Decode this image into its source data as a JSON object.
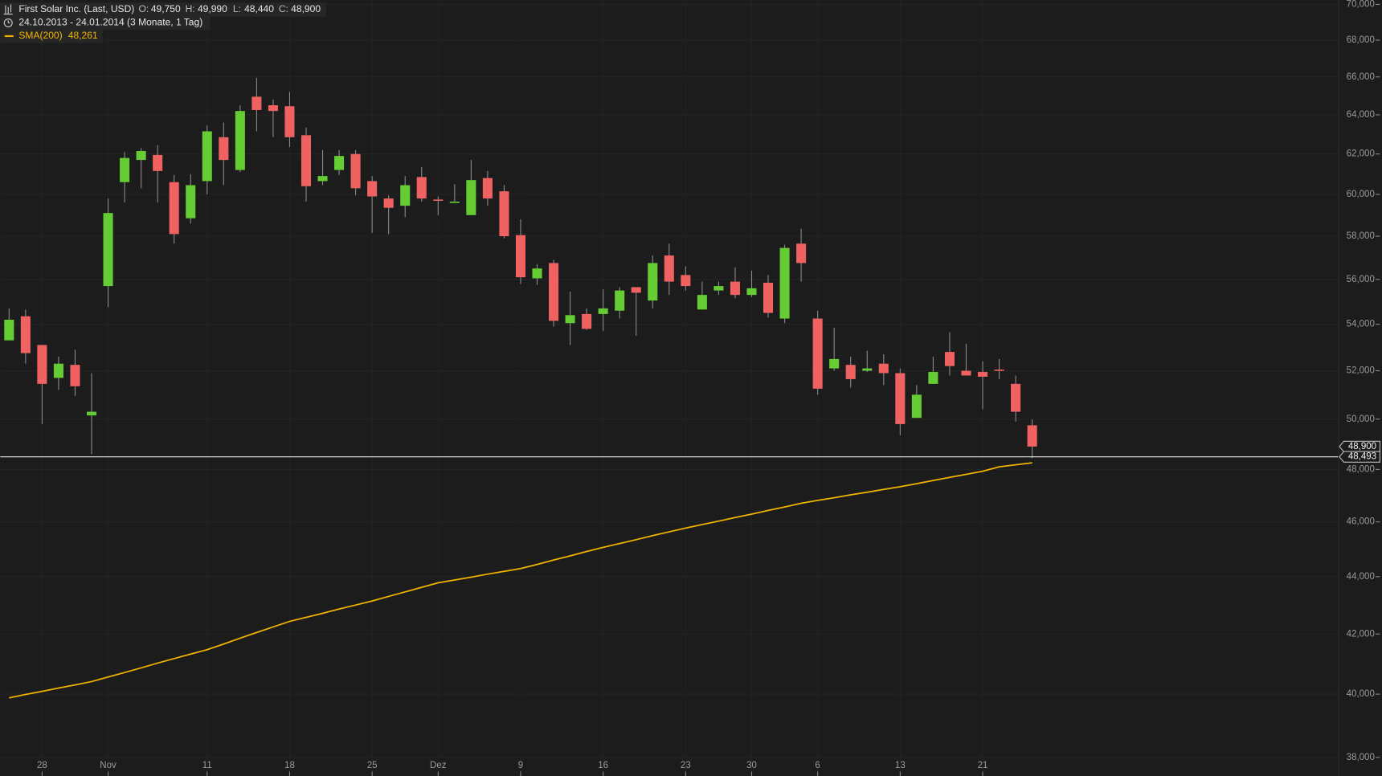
{
  "header": {
    "title": "First Solar Inc. (Last, USD)",
    "ohlc": [
      {
        "key": "O:",
        "text": "49,750"
      },
      {
        "key": "H:",
        "text": "49,990"
      },
      {
        "key": "L:",
        "text": "48,440"
      },
      {
        "key": "C:",
        "text": "48,900"
      }
    ],
    "range": "24.10.2013 - 24.01.2014 (3 Monate, 1 Tag)"
  },
  "chart_data": {
    "type": "candlestick",
    "log_scale": true,
    "grid": true,
    "up_color": "#66cc33",
    "down_color": "#f06262",
    "wick_color": "#8a8a8a",
    "categories": [
      null,
      null,
      "28",
      null,
      null,
      null,
      "Nov",
      null,
      null,
      null,
      null,
      null,
      "11",
      null,
      null,
      null,
      null,
      "18",
      null,
      null,
      null,
      null,
      "25",
      null,
      null,
      null,
      "Dez",
      null,
      null,
      null,
      null,
      "9",
      null,
      null,
      null,
      null,
      "16",
      null,
      null,
      null,
      null,
      "23",
      null,
      null,
      null,
      "30",
      null,
      null,
      null,
      "6",
      null,
      null,
      null,
      null,
      "13",
      null,
      null,
      null,
      null,
      "21",
      null,
      null,
      null
    ],
    "open": [
      53300,
      54350,
      53100,
      51700,
      52250,
      50150,
      55700,
      60600,
      61700,
      61950,
      60600,
      58850,
      60650,
      62850,
      61200,
      64950,
      64500,
      64450,
      62950,
      60650,
      61200,
      62000,
      60650,
      59800,
      59450,
      60850,
      59750,
      59600,
      59000,
      60800,
      60150,
      58050,
      56050,
      56750,
      54050,
      54450,
      54450,
      54600,
      55650,
      55050,
      57100,
      56200,
      54650,
      55500,
      55900,
      55300,
      55850,
      54250,
      57650,
      54250,
      52100,
      52250,
      52000,
      52300,
      51900,
      50050,
      51450,
      52800,
      52000,
      51950,
      52050,
      51450,
      49750
    ],
    "high": [
      54700,
      54650,
      53100,
      52600,
      52900,
      51900,
      59800,
      62100,
      62300,
      62450,
      60950,
      61000,
      63450,
      63600,
      64500,
      65950,
      64800,
      65200,
      63350,
      62200,
      62200,
      62200,
      60900,
      59950,
      60900,
      61350,
      59900,
      60500,
      61700,
      61150,
      60450,
      58800,
      56700,
      56900,
      55450,
      54700,
      55550,
      55650,
      55650,
      57100,
      57650,
      56600,
      55900,
      55900,
      56550,
      56400,
      56200,
      57600,
      58350,
      54600,
      53850,
      52600,
      52850,
      52700,
      52100,
      51400,
      52600,
      53650,
      53150,
      52400,
      52500,
      51800,
      49990
    ],
    "low": [
      53300,
      52300,
      49800,
      51200,
      50950,
      48600,
      54750,
      59600,
      60300,
      59600,
      57650,
      58600,
      60000,
      60450,
      61100,
      63150,
      62850,
      62350,
      59650,
      60450,
      60950,
      59950,
      58150,
      58100,
      58900,
      59650,
      59000,
      59600,
      59000,
      59450,
      57900,
      55800,
      55750,
      53900,
      53100,
      53750,
      53700,
      54250,
      53500,
      54700,
      55300,
      55500,
      54650,
      55300,
      55150,
      55200,
      54300,
      54050,
      55900,
      51000,
      52000,
      51300,
      51950,
      51400,
      49350,
      50050,
      51450,
      51800,
      51800,
      50400,
      51650,
      49900,
      48440
    ],
    "close": [
      54200,
      52750,
      51450,
      52300,
      51350,
      50300,
      59100,
      61800,
      62150,
      61150,
      58100,
      60450,
      63150,
      61700,
      64200,
      64250,
      64200,
      62850,
      60400,
      60900,
      61900,
      60300,
      59900,
      59350,
      60450,
      59800,
      59700,
      59650,
      60700,
      59800,
      58000,
      56100,
      56500,
      54150,
      54400,
      53800,
      54700,
      55500,
      55400,
      56750,
      55900,
      55700,
      55300,
      55700,
      55300,
      55600,
      54500,
      57450,
      56750,
      51250,
      52500,
      51650,
      52100,
      51900,
      49800,
      51000,
      51950,
      52200,
      51800,
      51750,
      52000,
      50300,
      48900
    ],
    "sma": {
      "name": "SMA(200)",
      "label": "48,261",
      "color": "#f0b400",
      "values": [
        39880,
        39990,
        40090,
        40200,
        40300,
        40410,
        40560,
        40710,
        40860,
        41020,
        41170,
        41320,
        41470,
        41660,
        41860,
        42050,
        42240,
        42430,
        42570,
        42710,
        42860,
        43000,
        43140,
        43300,
        43460,
        43620,
        43780,
        43880,
        43980,
        44090,
        44190,
        44290,
        44440,
        44600,
        44750,
        44910,
        45060,
        45200,
        45340,
        45490,
        45630,
        45770,
        45900,
        46030,
        46160,
        46290,
        46430,
        46560,
        46700,
        46810,
        46910,
        47020,
        47120,
        47230,
        47330,
        47450,
        47570,
        47690,
        47810,
        47930,
        48100,
        48180,
        48261
      ]
    },
    "ylim": [
      37430,
      70250
    ],
    "yticks": [
      {
        "value": 38000,
        "label": "38,000"
      },
      {
        "value": 40000,
        "label": "40,000"
      },
      {
        "value": 42000,
        "label": "42,000"
      },
      {
        "value": 44000,
        "label": "44,000"
      },
      {
        "value": 46000,
        "label": "46,000"
      },
      {
        "value": 48000,
        "label": "48,000"
      },
      {
        "value": 50000,
        "label": "50,000"
      },
      {
        "value": 52000,
        "label": "52,000"
      },
      {
        "value": 54000,
        "label": "54,000"
      },
      {
        "value": 56000,
        "label": "56,000"
      },
      {
        "value": 58000,
        "label": "58,000"
      },
      {
        "value": 60000,
        "label": "60,000"
      },
      {
        "value": 62000,
        "label": "62,000"
      },
      {
        "value": 64000,
        "label": "64,000"
      },
      {
        "value": 66000,
        "label": "66,000"
      },
      {
        "value": 68000,
        "label": "68,000"
      },
      {
        "value": 70000,
        "label": "70,000"
      }
    ],
    "markers": [
      {
        "value": 48900,
        "label": "48,900"
      },
      {
        "value": 48493,
        "label": "48,493"
      }
    ]
  }
}
